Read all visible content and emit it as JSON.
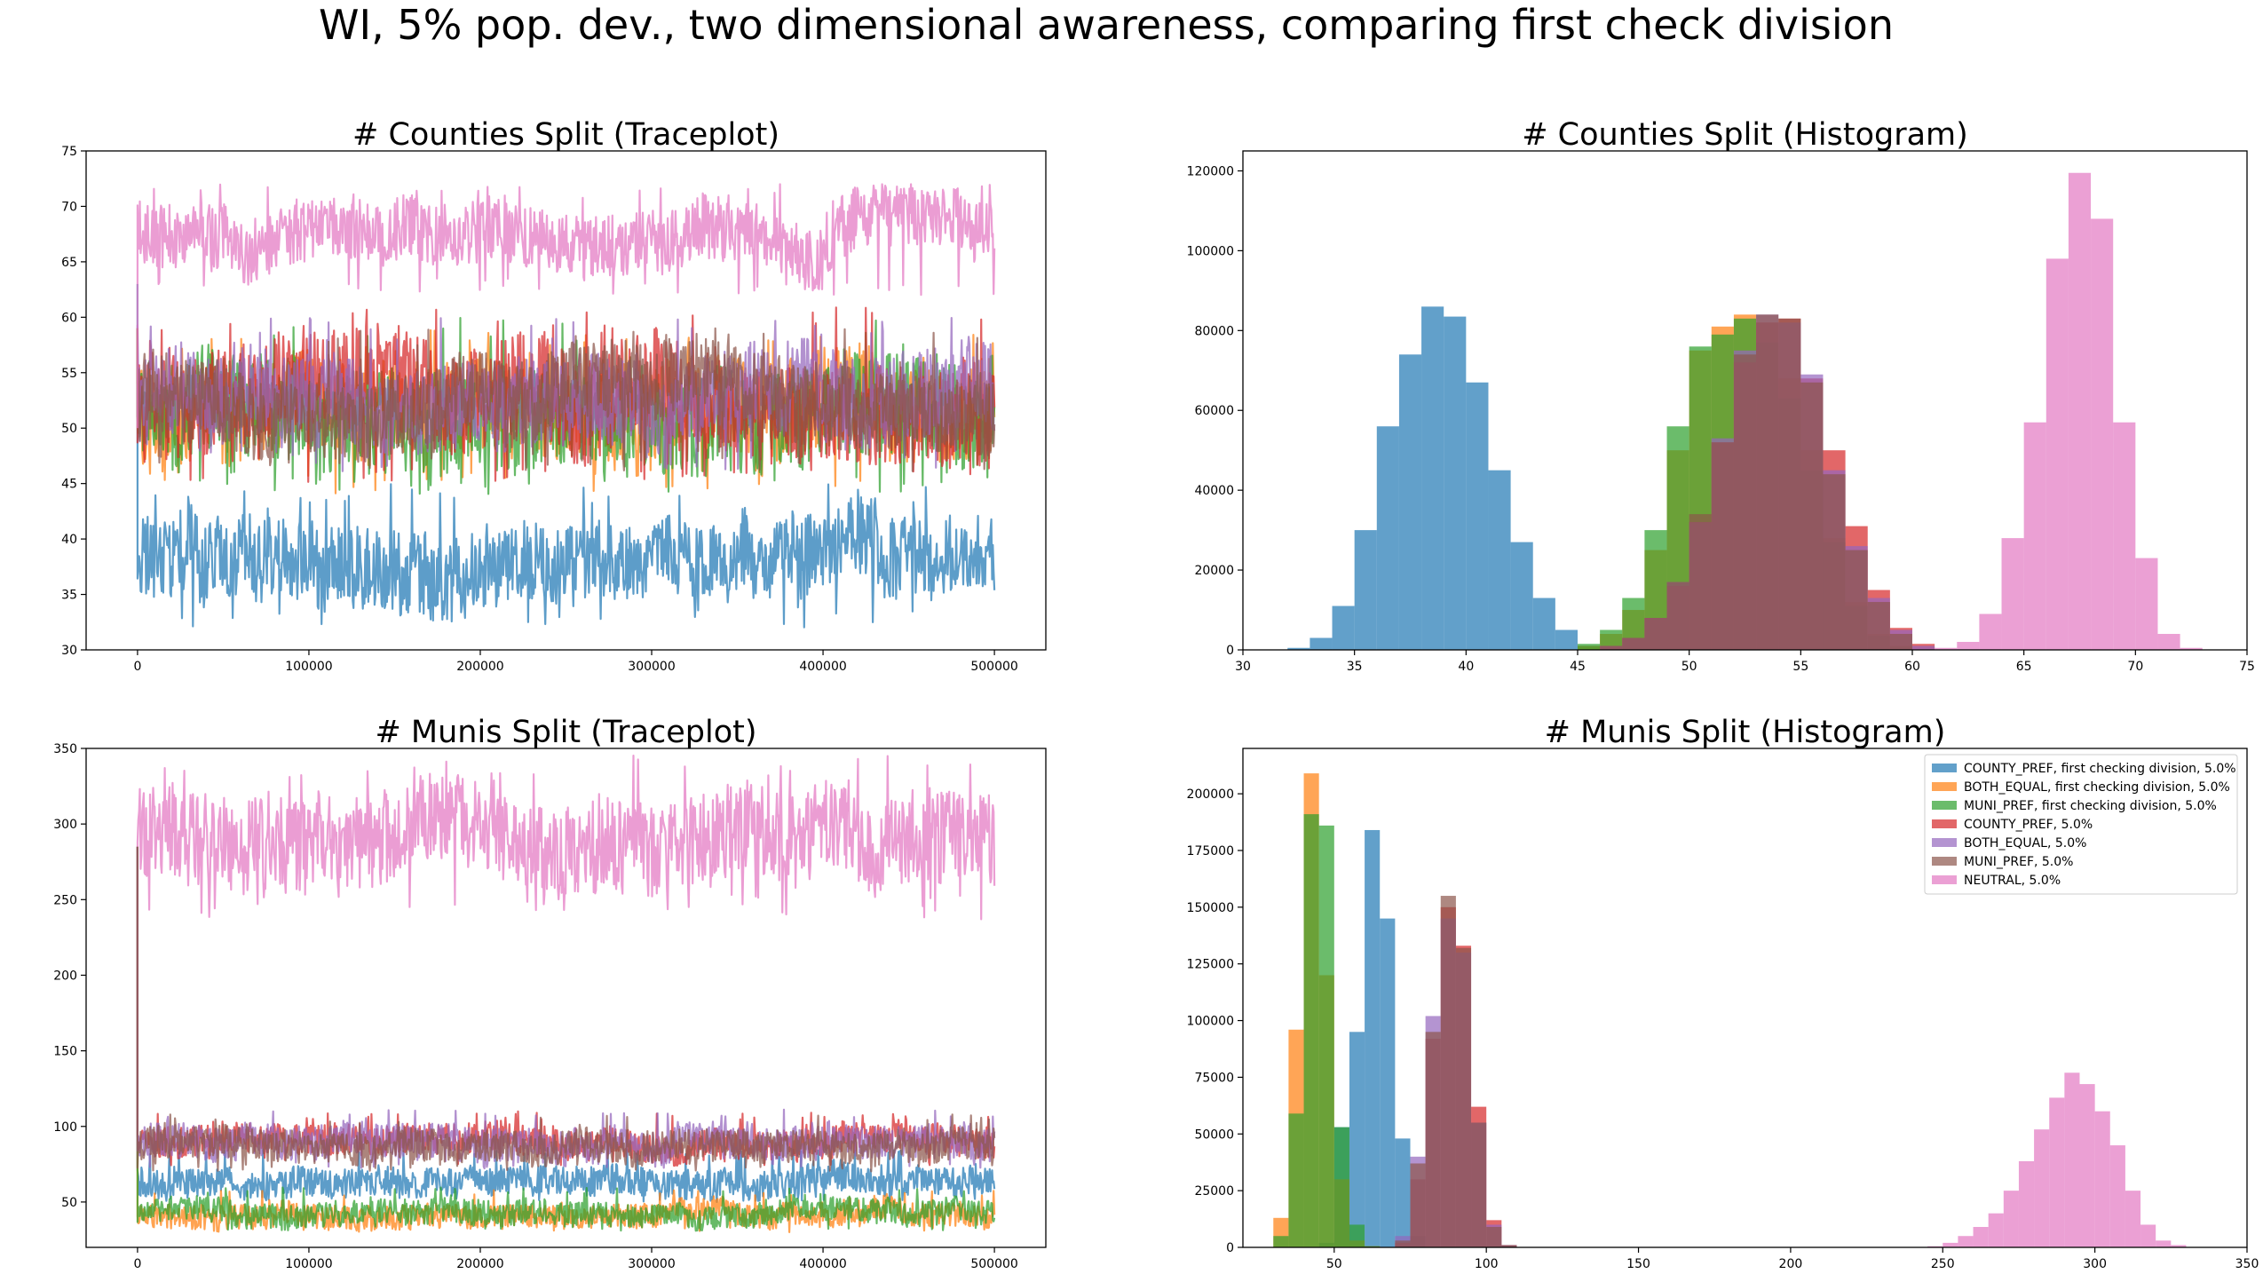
{
  "title": "WI, 5% pop. dev., two dimensional awareness, comparing first check division",
  "colors": {
    "COUNTY_PREF, first checking division, 5.0%": "#1f77b4",
    "BOTH_EQUAL, first checking division, 5.0%": "#ff7f0e",
    "MUNI_PREF, first checking division, 5.0%": "#2ca02c",
    "COUNTY_PREF, 5.0%": "#d62728",
    "BOTH_EQUAL, 5.0%": "#9467bd",
    "MUNI_PREF, 5.0%": "#8c564b",
    "NEUTRAL, 5.0%": "#e377c2"
  },
  "legend": {
    "placement": "upper right of Munis histogram",
    "entries": [
      "COUNTY_PREF, first checking division, 5.0%",
      "BOTH_EQUAL, first checking division, 5.0%",
      "MUNI_PREF, first checking division, 5.0%",
      "COUNTY_PREF, 5.0%",
      "BOTH_EQUAL, 5.0%",
      "MUNI_PREF, 5.0%",
      "NEUTRAL, 5.0%"
    ]
  },
  "chart_data": [
    {
      "type": "line",
      "title": "# Counties Split (Traceplot)",
      "xlim": [
        -30000,
        530000
      ],
      "ylim": [
        30,
        75
      ],
      "xticks": [
        0,
        100000,
        200000,
        300000,
        400000,
        500000
      ],
      "yticks": [
        30,
        35,
        40,
        45,
        50,
        55,
        60,
        65,
        70,
        75
      ],
      "x_range": [
        0,
        500000
      ],
      "series": [
        {
          "name": "COUNTY_PREF, first checking division, 5.0%",
          "start": 63,
          "mean": 38.5,
          "low": 32,
          "high": 45
        },
        {
          "name": "BOTH_EQUAL, first checking division, 5.0%",
          "start": 59,
          "mean": 51.5,
          "low": 44,
          "high": 59
        },
        {
          "name": "MUNI_PREF, first checking division, 5.0%",
          "start": 59,
          "mean": 51.5,
          "low": 44,
          "high": 60
        },
        {
          "name": "COUNTY_PREF, 5.0%",
          "start": 59,
          "mean": 52.5,
          "low": 45,
          "high": 61
        },
        {
          "name": "BOTH_EQUAL, 5.0%",
          "start": 59,
          "mean": 52.5,
          "low": 46,
          "high": 60
        },
        {
          "name": "MUNI_PREF, 5.0%",
          "start": 59,
          "mean": 52.5,
          "low": 46,
          "high": 59
        },
        {
          "name": "NEUTRAL, 5.0%",
          "start": 50,
          "mean": 67.5,
          "low": 62,
          "high": 72
        }
      ]
    },
    {
      "type": "bar",
      "title": "# Counties Split (Histogram)",
      "xlim": [
        30,
        75
      ],
      "ylim": [
        0,
        125000
      ],
      "xticks": [
        30,
        35,
        40,
        45,
        50,
        55,
        60,
        65,
        70,
        75
      ],
      "yticks": [
        0,
        20000,
        40000,
        60000,
        80000,
        100000,
        120000
      ],
      "bin_width": 1,
      "series": [
        {
          "name": "COUNTY_PREF, first checking division, 5.0%",
          "x": [
            32,
            33,
            34,
            35,
            36,
            37,
            38,
            39,
            40,
            41,
            42,
            43,
            44,
            45
          ],
          "values": [
            500,
            3000,
            11000,
            30000,
            56000,
            74000,
            86000,
            83500,
            67000,
            45000,
            27000,
            13000,
            5000,
            1000
          ]
        },
        {
          "name": "BOTH_EQUAL, first checking division, 5.0%",
          "x": [
            45,
            46,
            47,
            48,
            49,
            50,
            51,
            52,
            53,
            54,
            55,
            56,
            57,
            58,
            59
          ],
          "values": [
            1000,
            4000,
            10000,
            25000,
            50000,
            75000,
            81000,
            84000,
            82000,
            68000,
            50000,
            28000,
            12000,
            4000,
            1000
          ]
        },
        {
          "name": "MUNI_PREF, first checking division, 5.0%",
          "x": [
            45,
            46,
            47,
            48,
            49,
            50,
            51,
            52,
            53,
            54,
            55,
            56,
            57,
            58,
            59
          ],
          "values": [
            1500,
            5000,
            13000,
            30000,
            56000,
            76000,
            79000,
            83000,
            77000,
            63000,
            45000,
            27000,
            11000,
            3500,
            800
          ]
        },
        {
          "name": "COUNTY_PREF, 5.0%",
          "x": [
            46,
            47,
            48,
            49,
            50,
            51,
            52,
            53,
            54,
            55,
            56,
            57,
            58,
            59,
            60
          ],
          "values": [
            1000,
            3000,
            8000,
            16000,
            32000,
            52000,
            72000,
            82000,
            83000,
            68000,
            50000,
            31000,
            15000,
            5500,
            1500
          ]
        },
        {
          "name": "BOTH_EQUAL, 5.0%",
          "x": [
            46,
            47,
            48,
            49,
            50,
            51,
            52,
            53,
            54,
            55,
            56,
            57,
            58,
            59,
            60
          ],
          "values": [
            1000,
            3000,
            8000,
            17000,
            32000,
            53000,
            75000,
            84000,
            82000,
            69000,
            45000,
            26000,
            13000,
            5000,
            1000
          ]
        },
        {
          "name": "MUNI_PREF, 5.0%",
          "x": [
            46,
            47,
            48,
            49,
            50,
            51,
            52,
            53,
            54,
            55,
            56,
            57,
            58,
            59
          ],
          "values": [
            1000,
            3000,
            8000,
            17000,
            34000,
            52000,
            74000,
            84000,
            83000,
            67000,
            44000,
            25000,
            12000,
            4000
          ]
        },
        {
          "name": "NEUTRAL, 5.0%",
          "x": [
            61,
            62,
            63,
            64,
            65,
            66,
            67,
            68,
            69,
            70,
            71,
            72,
            73
          ],
          "values": [
            500,
            2000,
            9000,
            28000,
            57000,
            98000,
            119500,
            108000,
            57000,
            23000,
            4000,
            500,
            100
          ]
        }
      ]
    },
    {
      "type": "line",
      "title": "# Munis Split (Traceplot)",
      "xlim": [
        -30000,
        530000
      ],
      "ylim": [
        20,
        350
      ],
      "xticks": [
        0,
        100000,
        200000,
        300000,
        400000,
        500000
      ],
      "yticks": [
        50,
        100,
        150,
        200,
        250,
        300,
        350
      ],
      "x_range": [
        0,
        500000
      ],
      "series": [
        {
          "name": "COUNTY_PREF, first checking division, 5.0%",
          "start": 285,
          "mean": 64,
          "low": 50,
          "high": 85
        },
        {
          "name": "BOTH_EQUAL, first checking division, 5.0%",
          "start": 285,
          "mean": 42,
          "low": 30,
          "high": 58
        },
        {
          "name": "MUNI_PREF, first checking division, 5.0%",
          "start": 285,
          "mean": 44,
          "low": 31,
          "high": 60
        },
        {
          "name": "COUNTY_PREF, 5.0%",
          "start": 285,
          "mean": 90,
          "low": 74,
          "high": 110
        },
        {
          "name": "BOTH_EQUAL, 5.0%",
          "start": 285,
          "mean": 89,
          "low": 72,
          "high": 112
        },
        {
          "name": "MUNI_PREF, 5.0%",
          "start": 285,
          "mean": 88,
          "low": 70,
          "high": 108
        },
        {
          "name": "NEUTRAL, 5.0%",
          "start": 285,
          "mean": 288,
          "low": 237,
          "high": 346
        }
      ]
    },
    {
      "type": "bar",
      "title": "# Munis Split (Histogram)",
      "xlim": [
        20,
        350
      ],
      "ylim": [
        0,
        220000
      ],
      "xticks": [
        50,
        100,
        150,
        200,
        250,
        300,
        350
      ],
      "yticks": [
        0,
        25000,
        50000,
        75000,
        100000,
        125000,
        150000,
        175000,
        200000
      ],
      "bin_width": 5,
      "series": [
        {
          "name": "COUNTY_PREF, first checking division, 5.0%",
          "x": [
            45,
            50,
            55,
            60,
            65,
            70,
            75
          ],
          "values": [
            2000,
            53000,
            95000,
            184000,
            145000,
            48000,
            5000
          ]
        },
        {
          "name": "BOTH_EQUAL, first checking division, 5.0%",
          "x": [
            30,
            35,
            40,
            45,
            50,
            55,
            60
          ],
          "values": [
            13000,
            96000,
            209000,
            120000,
            30000,
            3000,
            500
          ]
        },
        {
          "name": "MUNI_PREF, first checking division, 5.0%",
          "x": [
            30,
            35,
            40,
            45,
            50,
            55,
            60
          ],
          "values": [
            5000,
            59000,
            191000,
            186000,
            53000,
            10000,
            500
          ]
        },
        {
          "name": "COUNTY_PREF, 5.0%",
          "x": [
            70,
            75,
            80,
            85,
            90,
            95,
            100,
            105
          ],
          "values": [
            2000,
            30000,
            92000,
            150000,
            133000,
            62000,
            12000,
            1000
          ]
        },
        {
          "name": "BOTH_EQUAL, 5.0%",
          "x": [
            70,
            75,
            80,
            85,
            90,
            95,
            100,
            105
          ],
          "values": [
            5000,
            40000,
            102000,
            145000,
            130000,
            55000,
            10000,
            1000
          ]
        },
        {
          "name": "MUNI_PREF, 5.0%",
          "x": [
            70,
            75,
            80,
            85,
            90,
            95,
            100,
            105
          ],
          "values": [
            3000,
            37000,
            95000,
            155000,
            132000,
            55000,
            9000,
            1000
          ]
        },
        {
          "name": "NEUTRAL, 5.0%",
          "x": [
            245,
            250,
            255,
            260,
            265,
            270,
            275,
            280,
            285,
            290,
            295,
            300,
            305,
            310,
            315,
            320,
            325
          ],
          "values": [
            500,
            2000,
            5000,
            9000,
            15000,
            25000,
            38000,
            52000,
            66000,
            77000,
            72000,
            60000,
            45000,
            25000,
            10000,
            3000,
            1000
          ]
        }
      ]
    }
  ]
}
